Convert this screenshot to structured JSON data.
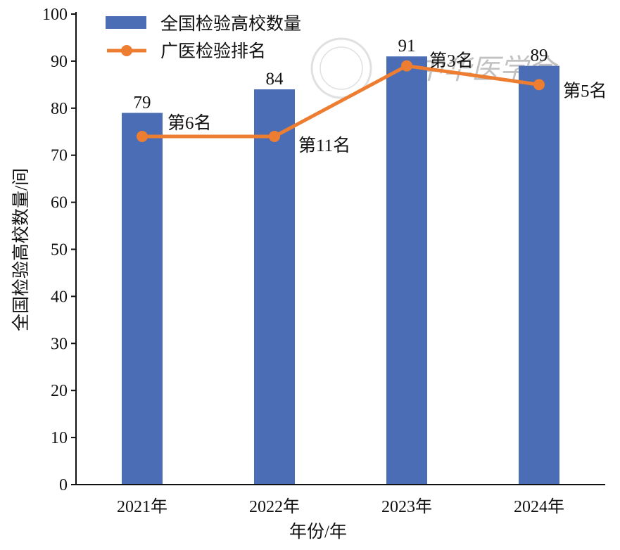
{
  "chart_data": {
    "type": "bar+line",
    "categories": [
      "2021年",
      "2022年",
      "2023年",
      "2024年"
    ],
    "series": [
      {
        "name": "全国检验高校数量",
        "type": "bar",
        "values": [
          79,
          84,
          91,
          89
        ],
        "color": "#4a6db5",
        "data_labels": [
          "79",
          "84",
          "91",
          "89"
        ]
      },
      {
        "name": "广医检验排名",
        "type": "line",
        "values": [
          74,
          74,
          89,
          85
        ],
        "color": "#ed7d31",
        "data_labels": [
          "第6名",
          "第11名",
          "第3名",
          "第5名"
        ]
      }
    ],
    "xlabel": "年份/年",
    "ylabel": "全国检验高校数量/间",
    "ylim": [
      0,
      100
    ],
    "yticks": [
      "0",
      "10",
      "20",
      "30",
      "40",
      "50",
      "60",
      "70",
      "80",
      "90",
      "100"
    ],
    "grid": false,
    "legend": "top-left"
  },
  "watermark": "中华医学会"
}
